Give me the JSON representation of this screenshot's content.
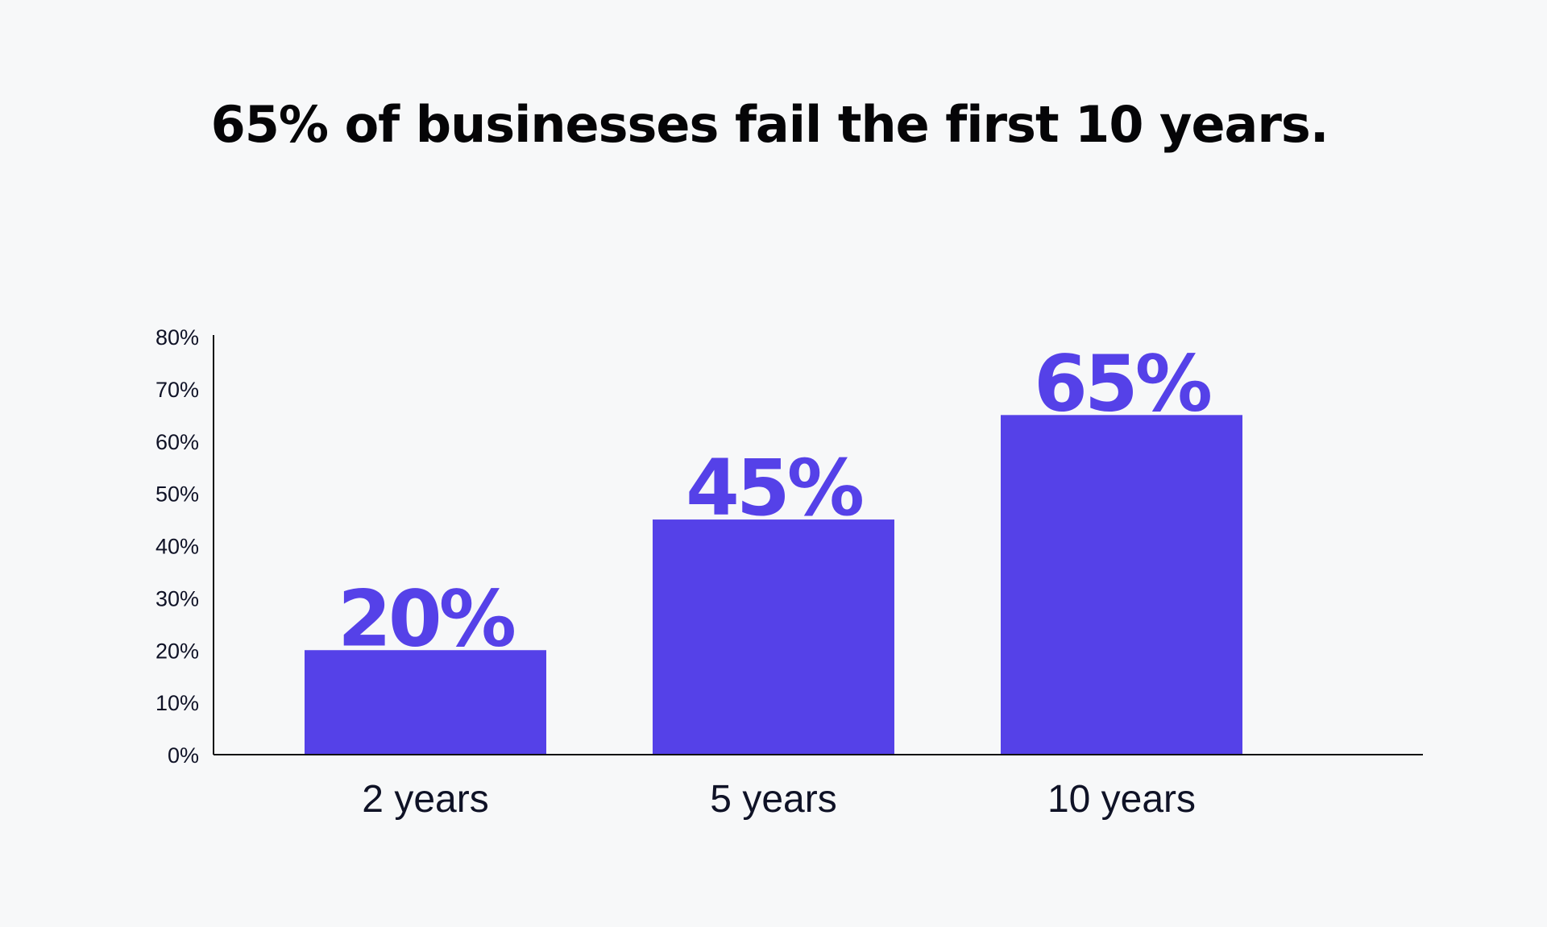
{
  "chart_data": {
    "type": "bar",
    "title": "65% of businesses fail the first 10 years.",
    "categories": [
      "2 years",
      "5 years",
      "10 years"
    ],
    "values": [
      20,
      45,
      65
    ],
    "value_labels": [
      "20%",
      "45%",
      "65%"
    ],
    "y_ticks": [
      "0%",
      "10%",
      "20%",
      "30%",
      "40%",
      "50%",
      "60%",
      "70%",
      "80%"
    ],
    "ylim": [
      0,
      80
    ],
    "grid": false,
    "bar_color": "#5541e8",
    "value_label_color": "#5541e8",
    "axis_color": "#111111"
  }
}
